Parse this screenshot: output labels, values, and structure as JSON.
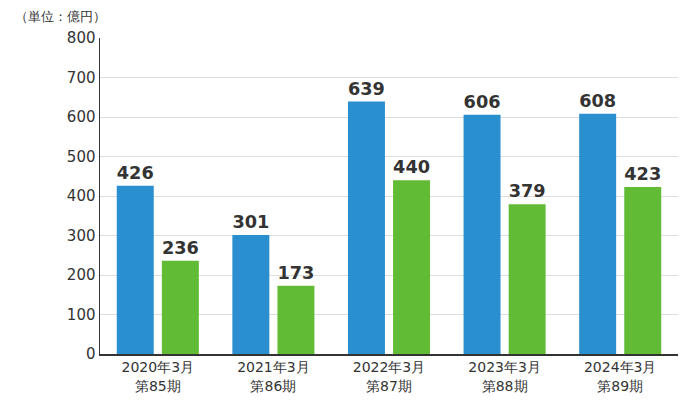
{
  "chart_data": {
    "type": "bar",
    "ylabel": "（単位：億円）",
    "categories": [
      "2020年3月\n第85期",
      "2021年3月\n第86期",
      "2022年3月\n第87期",
      "2023年3月\n第88期",
      "2024年3月\n第89期"
    ],
    "series": [
      {
        "color": "#2a8fcf",
        "values": [
          426,
          301,
          639,
          606,
          608
        ]
      },
      {
        "color": "#62bb35",
        "values": [
          236,
          173,
          440,
          379,
          423
        ]
      }
    ],
    "ylim": [
      0,
      800
    ],
    "yticks": [
      0,
      100,
      200,
      300,
      400,
      500,
      600,
      700,
      800
    ],
    "grid": true,
    "data_labels": true
  }
}
